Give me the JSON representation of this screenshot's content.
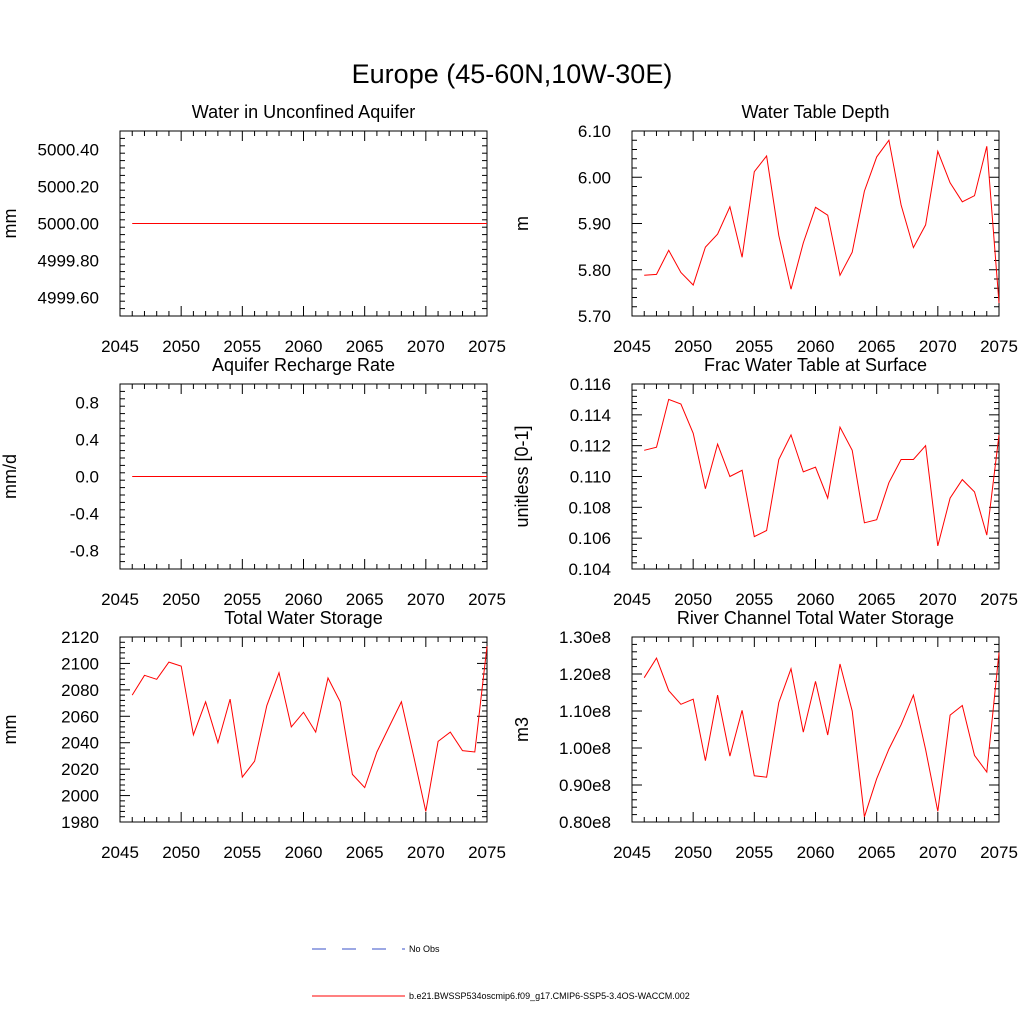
{
  "title": "Europe (45-60N,10W-30E)",
  "colors": {
    "series": "#ff0000",
    "obs": "#3a50c8",
    "axis": "#000000"
  },
  "legend": {
    "obs_label": "No Obs",
    "run_label": "b.e21.BWSSP534oscmip6.f09_g17.CMIP6-SSP5-3.4OS-WACCM.002"
  },
  "chart_data": [
    {
      "type": "line",
      "title": "Water in Unconfined Aquifer",
      "ylabel": "mm",
      "xlim": [
        2045,
        2075
      ],
      "ylim": [
        4999.5,
        5000.5
      ],
      "xticks": [
        2045,
        2050,
        2055,
        2060,
        2065,
        2070,
        2075
      ],
      "yticks": [
        4999.6,
        4999.8,
        5000.0,
        5000.2,
        5000.4
      ],
      "yticklabels": [
        "4999.60",
        "4999.80",
        "5000.00",
        "5000.20",
        "5000.40"
      ],
      "x": [
        2046,
        2047,
        2048,
        2049,
        2050,
        2051,
        2052,
        2053,
        2054,
        2055,
        2056,
        2057,
        2058,
        2059,
        2060,
        2061,
        2062,
        2063,
        2064,
        2065,
        2066,
        2067,
        2068,
        2069,
        2070,
        2071,
        2072,
        2073,
        2074,
        2075
      ],
      "values": [
        5000,
        5000,
        5000,
        5000,
        5000,
        5000,
        5000,
        5000,
        5000,
        5000,
        5000,
        5000,
        5000,
        5000,
        5000,
        5000,
        5000,
        5000,
        5000,
        5000,
        5000,
        5000,
        5000,
        5000,
        5000,
        5000,
        5000,
        5000,
        5000,
        5000
      ]
    },
    {
      "type": "line",
      "title": "Water Table Depth",
      "ylabel": "m",
      "xlim": [
        2045,
        2075
      ],
      "ylim": [
        5.7,
        6.1
      ],
      "xticks": [
        2045,
        2050,
        2055,
        2060,
        2065,
        2070,
        2075
      ],
      "yticks": [
        5.7,
        5.8,
        5.9,
        6.0,
        6.1
      ],
      "yticklabels": [
        "5.70",
        "5.80",
        "5.90",
        "6.00",
        "6.10"
      ],
      "x": [
        2046,
        2047,
        2048,
        2049,
        2050,
        2051,
        2052,
        2053,
        2054,
        2055,
        2056,
        2057,
        2058,
        2059,
        2060,
        2061,
        2062,
        2063,
        2064,
        2065,
        2066,
        2067,
        2068,
        2069,
        2070,
        2071,
        2072,
        2073,
        2074,
        2075
      ],
      "values": [
        5.788,
        5.79,
        5.842,
        5.794,
        5.767,
        5.849,
        5.877,
        5.936,
        5.827,
        6.012,
        6.046,
        5.874,
        5.758,
        5.858,
        5.935,
        5.918,
        5.788,
        5.838,
        5.97,
        6.044,
        6.08,
        5.94,
        5.848,
        5.897,
        6.056,
        5.988,
        5.947,
        5.96,
        6.067,
        5.728
      ]
    },
    {
      "type": "line",
      "title": "Aquifer Recharge Rate",
      "ylabel": "mm/d",
      "xlim": [
        2045,
        2075
      ],
      "ylim": [
        -1.0,
        1.0
      ],
      "xticks": [
        2045,
        2050,
        2055,
        2060,
        2065,
        2070,
        2075
      ],
      "yticks": [
        -0.8,
        -0.4,
        0.0,
        0.4,
        0.8
      ],
      "yticklabels": [
        "-0.8",
        "-0.4",
        "0.0",
        "0.4",
        "0.8"
      ],
      "x": [
        2046,
        2047,
        2048,
        2049,
        2050,
        2051,
        2052,
        2053,
        2054,
        2055,
        2056,
        2057,
        2058,
        2059,
        2060,
        2061,
        2062,
        2063,
        2064,
        2065,
        2066,
        2067,
        2068,
        2069,
        2070,
        2071,
        2072,
        2073,
        2074,
        2075
      ],
      "values": [
        0,
        0,
        0,
        0,
        0,
        0,
        0,
        0,
        0,
        0,
        0,
        0,
        0,
        0,
        0,
        0,
        0,
        0,
        0,
        0,
        0,
        0,
        0,
        0,
        0,
        0,
        0,
        0,
        0,
        0
      ]
    },
    {
      "type": "line",
      "title": "Frac Water Table at Surface",
      "ylabel": "unitless [0-1]",
      "xlim": [
        2045,
        2075
      ],
      "ylim": [
        0.104,
        0.116
      ],
      "xticks": [
        2045,
        2050,
        2055,
        2060,
        2065,
        2070,
        2075
      ],
      "yticks": [
        0.104,
        0.106,
        0.108,
        0.11,
        0.112,
        0.114,
        0.116
      ],
      "yticklabels": [
        "0.104",
        "0.106",
        "0.108",
        "0.110",
        "0.112",
        "0.114",
        "0.116"
      ],
      "x": [
        2046,
        2047,
        2048,
        2049,
        2050,
        2051,
        2052,
        2053,
        2054,
        2055,
        2056,
        2057,
        2058,
        2059,
        2060,
        2061,
        2062,
        2063,
        2064,
        2065,
        2066,
        2067,
        2068,
        2069,
        2070,
        2071,
        2072,
        2073,
        2074,
        2075
      ],
      "values": [
        0.1117,
        0.1119,
        0.115,
        0.1147,
        0.1128,
        0.1092,
        0.1121,
        0.11,
        0.1104,
        0.1061,
        0.1065,
        0.1111,
        0.1127,
        0.1103,
        0.1106,
        0.1086,
        0.1132,
        0.1117,
        0.107,
        0.1072,
        0.1096,
        0.1111,
        0.1111,
        0.112,
        0.1055,
        0.1086,
        0.1098,
        0.109,
        0.1062,
        0.1127
      ]
    },
    {
      "type": "line",
      "title": "Total Water Storage",
      "ylabel": "mm",
      "xlim": [
        2045,
        2075
      ],
      "ylim": [
        1980,
        2120
      ],
      "xticks": [
        2045,
        2050,
        2055,
        2060,
        2065,
        2070,
        2075
      ],
      "yticks": [
        1980,
        2000,
        2020,
        2040,
        2060,
        2080,
        2100,
        2120
      ],
      "yticklabels": [
        "1980",
        "2000",
        "2020",
        "2040",
        "2060",
        "2080",
        "2100",
        "2120"
      ],
      "x": [
        2046,
        2047,
        2048,
        2049,
        2050,
        2051,
        2052,
        2053,
        2054,
        2055,
        2056,
        2057,
        2058,
        2059,
        2060,
        2061,
        2062,
        2063,
        2064,
        2065,
        2066,
        2067,
        2068,
        2069,
        2070,
        2071,
        2072,
        2073,
        2074,
        2075
      ],
      "values": [
        2076,
        2091,
        2088,
        2101,
        2098,
        2046,
        2071,
        2040,
        2073,
        2014,
        2026,
        2068,
        2093,
        2052,
        2063,
        2048,
        2089,
        2071,
        2016,
        2006,
        2033,
        2052,
        2071,
        2030,
        1988,
        2041,
        2048,
        2034,
        2033,
        2113
      ]
    },
    {
      "type": "line",
      "title": "River Channel Total Water Storage",
      "ylabel": "m3",
      "xlim": [
        2045,
        2075
      ],
      "ylim": [
        80000000.0,
        130000000.0
      ],
      "xticks": [
        2045,
        2050,
        2055,
        2060,
        2065,
        2070,
        2075
      ],
      "yticks": [
        80000000.0,
        90000000.0,
        100000000.0,
        110000000.0,
        120000000.0,
        130000000.0
      ],
      "yticklabels": [
        "0.80e8",
        "0.90e8",
        "1.00e8",
        "1.10e8",
        "1.20e8",
        "1.30e8"
      ],
      "x": [
        2046,
        2047,
        2048,
        2049,
        2050,
        2051,
        2052,
        2053,
        2054,
        2055,
        2056,
        2057,
        2058,
        2059,
        2060,
        2061,
        2062,
        2063,
        2064,
        2065,
        2066,
        2067,
        2068,
        2069,
        2070,
        2071,
        2072,
        2073,
        2074,
        2075
      ],
      "values": [
        119000000.0,
        124300000.0,
        115500000.0,
        111800000.0,
        113200000.0,
        96600000.0,
        114300000.0,
        97800000.0,
        110200000.0,
        92500000.0,
        92100000.0,
        112300000.0,
        121400000.0,
        104300000.0,
        118000000.0,
        103500000.0,
        122700000.0,
        110000000.0,
        81400000.0,
        91700000.0,
        99700000.0,
        106300000.0,
        114300000.0,
        99600000.0,
        82900000.0,
        108900000.0,
        111500000.0,
        98000000.0,
        93500000.0,
        125800000.0
      ]
    }
  ]
}
